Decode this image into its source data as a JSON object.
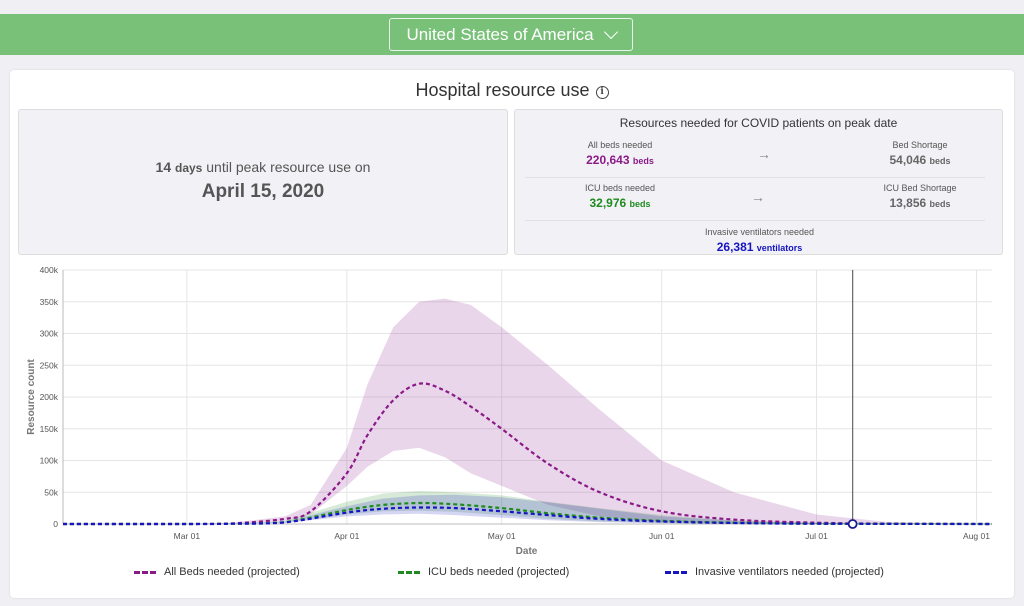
{
  "topbar": {
    "country": "United States of America"
  },
  "card": {
    "title": "Hospital resource use",
    "info_icon": "i"
  },
  "peak": {
    "days": "14",
    "days_word": "days",
    "text": "until peak resource use on",
    "date": "April 15, 2020"
  },
  "resources": {
    "title": "Resources needed for COVID patients on peak date",
    "beds_label": "All beds needed",
    "beds_value": "220,643",
    "beds_unit": "beds",
    "shortage_label": "Bed Shortage",
    "shortage_value": "54,046",
    "shortage_unit": "beds",
    "icu_label": "ICU beds needed",
    "icu_value": "32,976",
    "icu_unit": "beds",
    "icu_shortage_label": "ICU Bed Shortage",
    "icu_shortage_value": "13,856",
    "icu_shortage_unit": "beds",
    "vent_label": "Invasive ventilators needed",
    "vent_value": "26,381",
    "vent_unit": "ventilators",
    "arrow": "→"
  },
  "colors": {
    "purple": "#8b1a89",
    "green": "#1f8a1f",
    "blue": "#1515c2",
    "topbar": "#79c179"
  },
  "chart_data": {
    "type": "line",
    "xlabel": "Date",
    "ylabel": "Resource count",
    "x_ticks": [
      "Mar 01",
      "Apr 01",
      "May 01",
      "Jun 01",
      "Jul 01",
      "Aug 01"
    ],
    "y_ticks": [
      "0",
      "50k",
      "100k",
      "150k",
      "200k",
      "250k",
      "300k",
      "350k",
      "400k"
    ],
    "ylim": [
      0,
      400000
    ],
    "xlim": [
      "2020-02-06",
      "2020-08-04"
    ],
    "grid": true,
    "marker_date": "2020-07-08",
    "series": [
      {
        "name": "All Beds needed (projected)",
        "color": "#8b1a89",
        "x": [
          "2020-02-06",
          "2020-03-01",
          "2020-03-10",
          "2020-03-20",
          "2020-03-25",
          "2020-04-01",
          "2020-04-05",
          "2020-04-10",
          "2020-04-15",
          "2020-04-20",
          "2020-04-25",
          "2020-05-01",
          "2020-05-10",
          "2020-05-20",
          "2020-06-01",
          "2020-06-15",
          "2020-07-01",
          "2020-07-15",
          "2020-08-04"
        ],
        "y": [
          0,
          0,
          1000,
          8000,
          20000,
          80000,
          140000,
          195000,
          221000,
          210000,
          185000,
          150000,
          95000,
          50000,
          20000,
          7000,
          2000,
          500,
          0
        ],
        "lower": [
          0,
          0,
          500,
          5000,
          15000,
          60000,
          90000,
          115000,
          120000,
          105000,
          80000,
          60000,
          30000,
          12000,
          3000,
          500,
          0,
          0,
          0
        ],
        "upper": [
          0,
          0,
          2000,
          12000,
          30000,
          120000,
          220000,
          310000,
          350000,
          355000,
          345000,
          310000,
          250000,
          180000,
          100000,
          50000,
          15000,
          3000,
          0
        ]
      },
      {
        "name": "ICU beds needed (projected)",
        "color": "#1f8a1f",
        "x": [
          "2020-02-06",
          "2020-03-01",
          "2020-03-10",
          "2020-03-20",
          "2020-04-01",
          "2020-04-08",
          "2020-04-15",
          "2020-04-22",
          "2020-05-01",
          "2020-05-10",
          "2020-05-20",
          "2020-06-01",
          "2020-06-15",
          "2020-07-01",
          "2020-08-04"
        ],
        "y": [
          0,
          0,
          500,
          3000,
          22000,
          30000,
          33000,
          31000,
          25000,
          17000,
          10000,
          5000,
          2000,
          500,
          0
        ],
        "lower": [
          0,
          0,
          300,
          2000,
          15000,
          20000,
          21000,
          19000,
          14000,
          8000,
          4000,
          1500,
          400,
          0,
          0
        ],
        "upper": [
          0,
          0,
          800,
          5000,
          35000,
          48000,
          52000,
          50000,
          45000,
          35000,
          25000,
          14000,
          6000,
          2000,
          0
        ]
      },
      {
        "name": "Invasive ventilators needed (projected)",
        "color": "#1515c2",
        "x": [
          "2020-02-06",
          "2020-03-01",
          "2020-03-10",
          "2020-03-20",
          "2020-04-01",
          "2020-04-08",
          "2020-04-15",
          "2020-04-22",
          "2020-05-01",
          "2020-05-10",
          "2020-05-20",
          "2020-06-01",
          "2020-06-15",
          "2020-07-01",
          "2020-08-04"
        ],
        "y": [
          0,
          0,
          400,
          2500,
          18000,
          24000,
          26000,
          25000,
          20000,
          14000,
          8000,
          4000,
          1500,
          400,
          0
        ],
        "lower": [
          0,
          0,
          200,
          1500,
          12000,
          15000,
          16000,
          14000,
          10000,
          6000,
          3000,
          1000,
          300,
          0,
          0
        ],
        "upper": [
          0,
          0,
          600,
          4000,
          28000,
          40000,
          45000,
          46000,
          42000,
          34000,
          24000,
          12000,
          5000,
          1500,
          0
        ]
      }
    ]
  }
}
